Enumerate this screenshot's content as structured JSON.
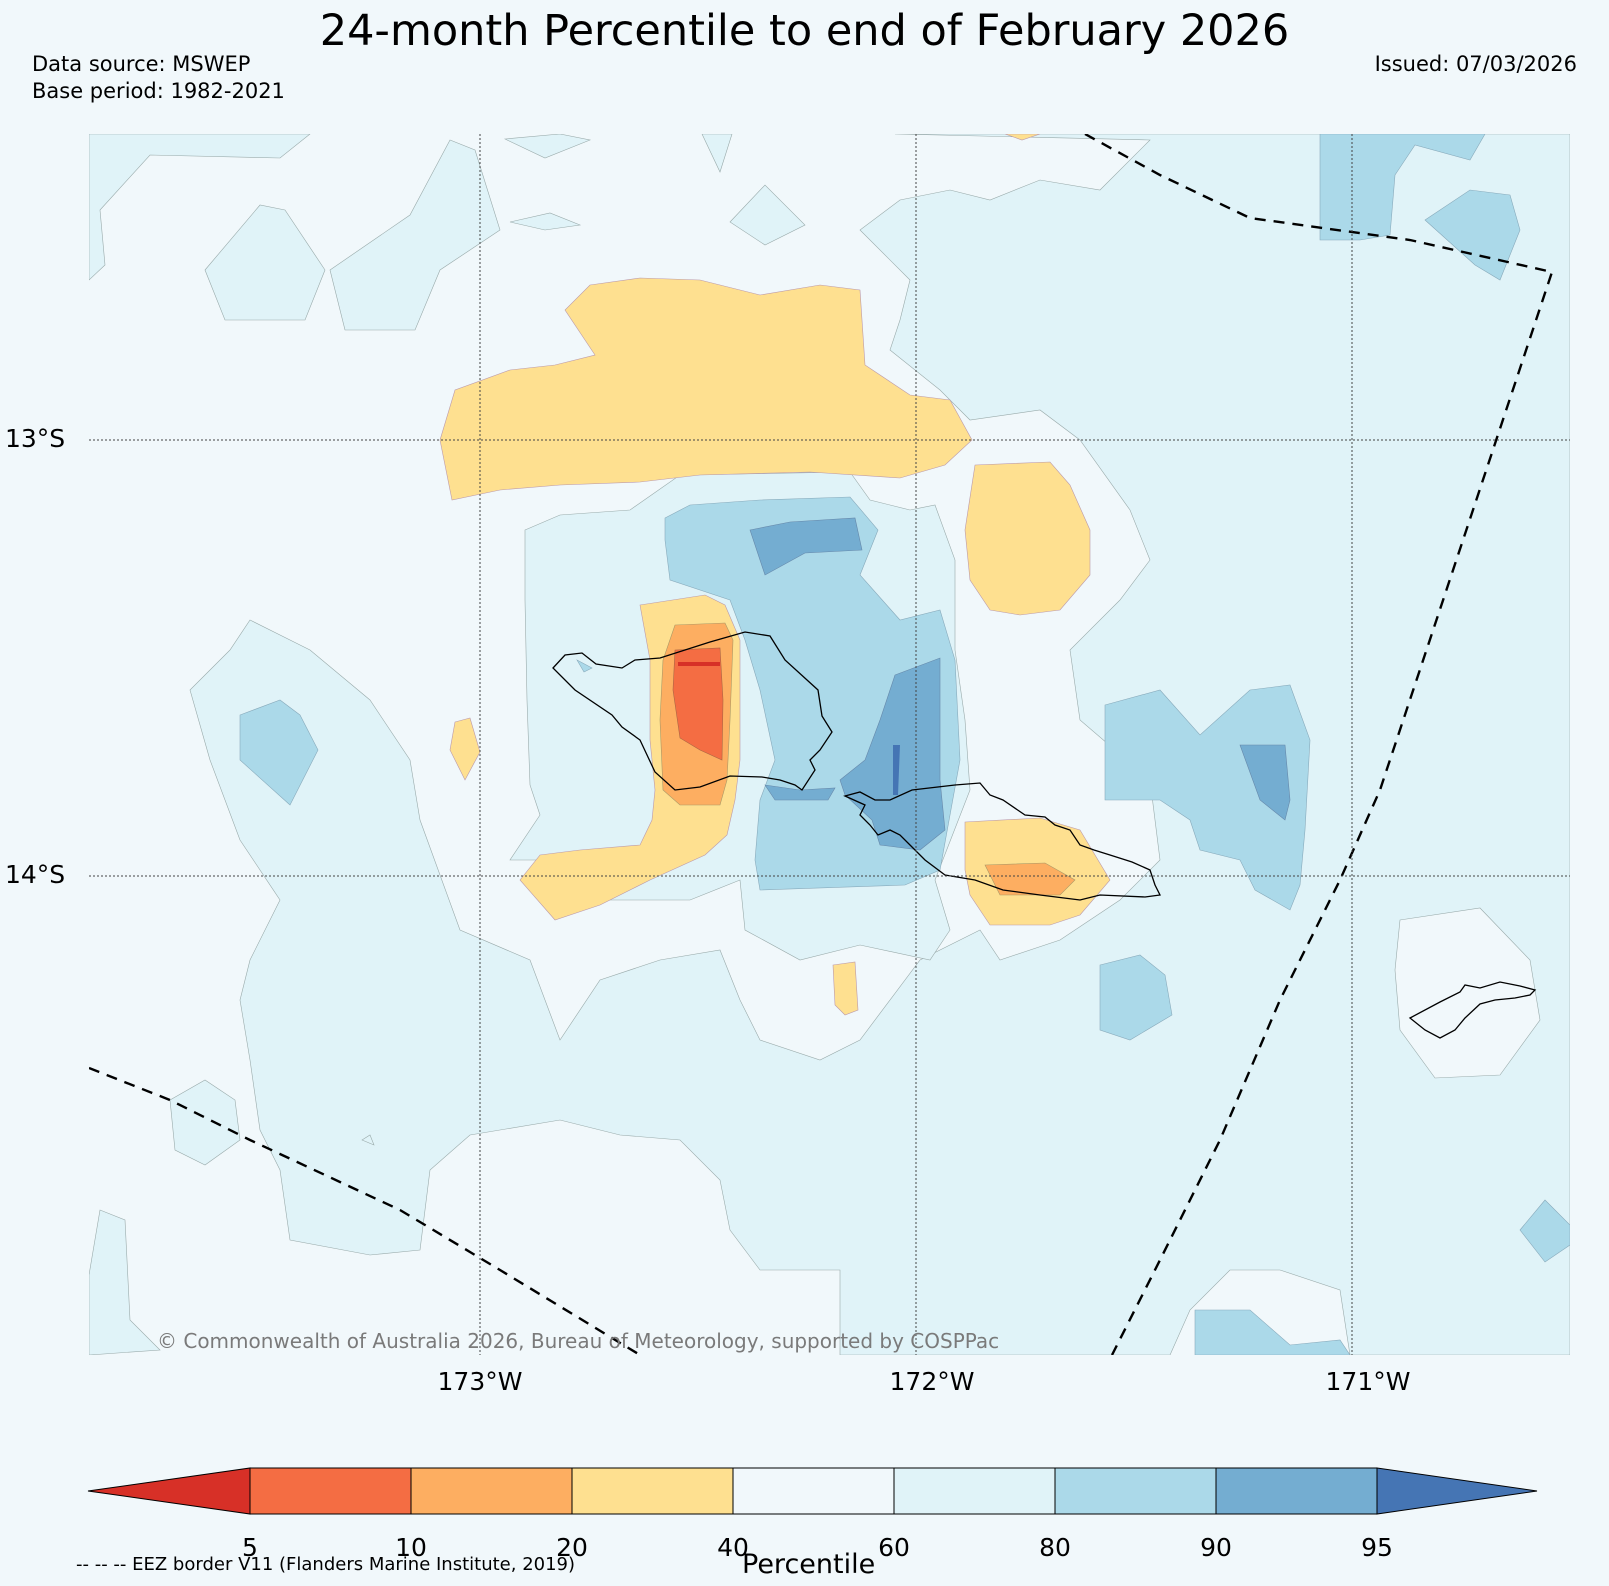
{
  "title": "24-month Percentile to end of February 2026",
  "data_source": "Data source: MSWEP",
  "base_period": "Base period: 1982-2021",
  "issued": "Issued: 07/03/2026",
  "latitude_labels": [
    "13°S",
    "14°S"
  ],
  "longitude_labels": [
    "173°W",
    "172°W",
    "171°W"
  ],
  "copyright": "© Commonwealth of Australia 2026, Bureau of Meteorology, supported by COSPPac",
  "colorbar": {
    "label": "Percentile",
    "ticks": [
      "5",
      "10",
      "20",
      "40",
      "60",
      "80",
      "90",
      "95"
    ],
    "colors": [
      "#d73027",
      "#f46d43",
      "#fdae61",
      "#fee090",
      "#f1f8fb",
      "#e0f3f8",
      "#abd9e9",
      "#74add1",
      "#4575b4"
    ]
  },
  "eez_note": "-- -- -- EEZ border V11 (Flanders Marine Institute, 2019)"
}
